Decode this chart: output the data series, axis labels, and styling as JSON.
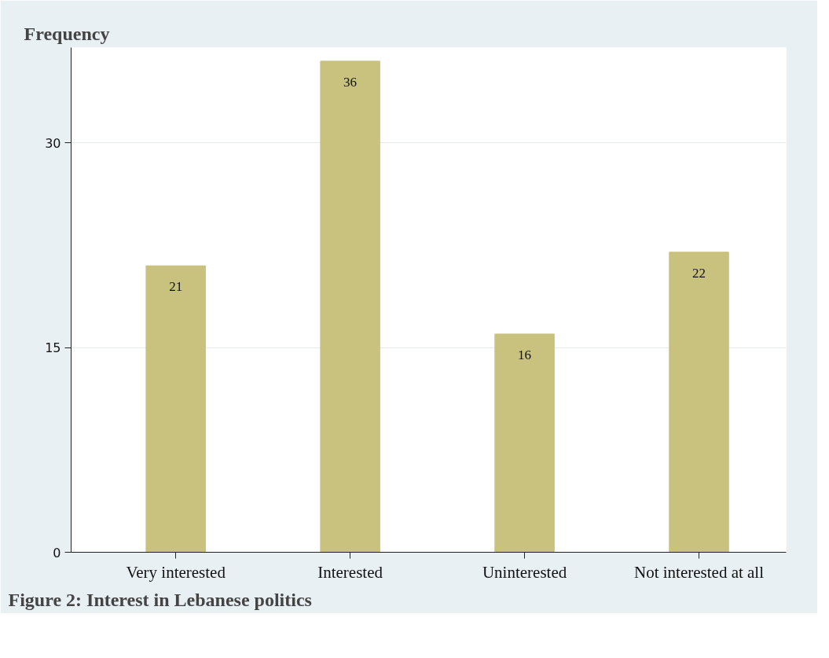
{
  "chart_data": {
    "type": "bar",
    "title": "Figure 2: Interest in Lebanese politics",
    "ylabel": "Frequency",
    "categories": [
      "Very interested",
      "Interested",
      "Uninterested",
      "Not interested at all"
    ],
    "values": [
      21,
      36,
      16,
      22
    ],
    "color": "#c9c17e",
    "data_labels": true,
    "ylim": [
      0,
      37
    ],
    "yticks": [
      0,
      15,
      30
    ],
    "grid": "y"
  }
}
